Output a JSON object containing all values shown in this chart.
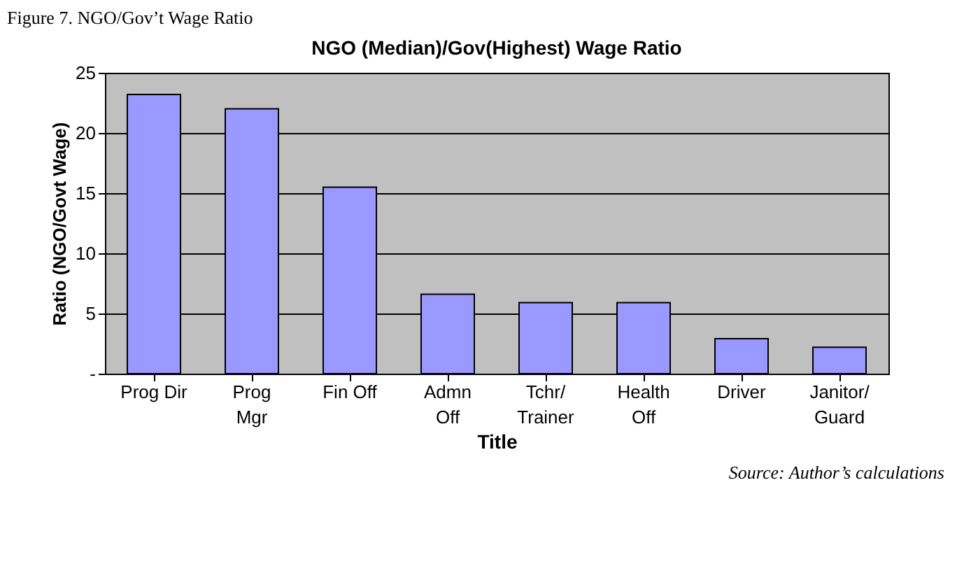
{
  "chart_data": {
    "type": "bar",
    "title": "NGO (Median)/Gov(Highest) Wage Ratio",
    "xlabel": "Title",
    "ylabel": "Ratio (NGO/Govt Wage)",
    "categories": [
      "Prog Dir",
      "Prog\nMgr",
      "Fin Off",
      "Admn\nOff",
      "Tchr/\nTrainer",
      "Health\nOff",
      "Driver",
      "Janitor/\nGuard"
    ],
    "values": [
      23.2,
      22.0,
      15.5,
      6.6,
      5.9,
      5.9,
      2.9,
      2.2
    ],
    "color": "#9999ff",
    "ylim": [
      0,
      25
    ],
    "yticks": [
      {
        "value": 0,
        "label": "-"
      },
      5,
      10,
      15,
      20,
      25
    ],
    "grid": "y",
    "annotations": [
      "Figure 7. NGO/Gov’t Wage Ratio",
      "Source: Author’s calculations"
    ]
  }
}
